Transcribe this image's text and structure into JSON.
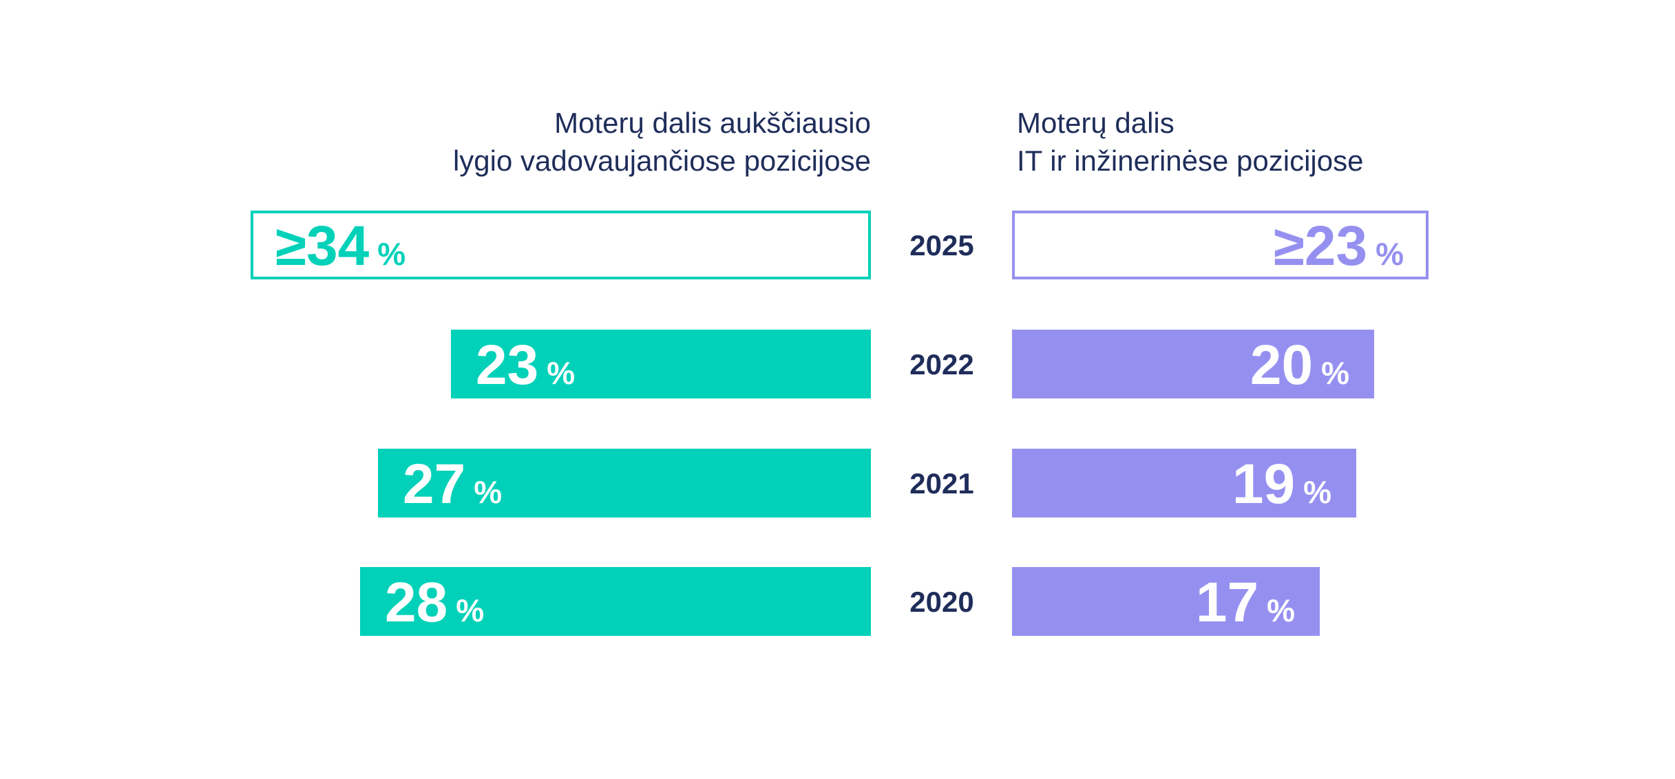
{
  "chart_data": [
    {
      "type": "bar",
      "orientation": "horizontal",
      "title": [
        "Moterų dalis aukščiausio",
        "lygio vadovaujančiose pozicijose"
      ],
      "categories": [
        "2025",
        "2022",
        "2021",
        "2020"
      ],
      "labels": [
        "≥34",
        "23",
        "27",
        "28"
      ],
      "values": [
        34,
        23,
        27,
        28
      ],
      "unit": "%",
      "target_outline": [
        true,
        false,
        false,
        false
      ],
      "color": "#00d1b8",
      "bar_direction": "right-to-left"
    },
    {
      "type": "bar",
      "orientation": "horizontal",
      "title": [
        "Moterų dalis",
        "IT ir inžinerinėse pozicijose"
      ],
      "categories": [
        "2025",
        "2022",
        "2021",
        "2020"
      ],
      "labels": [
        "≥23",
        "20",
        "19",
        "17"
      ],
      "values": [
        23,
        20,
        19,
        17
      ],
      "unit": "%",
      "target_outline": [
        true,
        false,
        false,
        false
      ],
      "color": "#9590f0",
      "bar_direction": "left-to-right"
    }
  ],
  "years": [
    "2025",
    "2022",
    "2021",
    "2020"
  ],
  "colors": {
    "text": "#1f2d5a",
    "left": "#00d1b8",
    "right": "#9590f0",
    "background": "#ffffff"
  }
}
